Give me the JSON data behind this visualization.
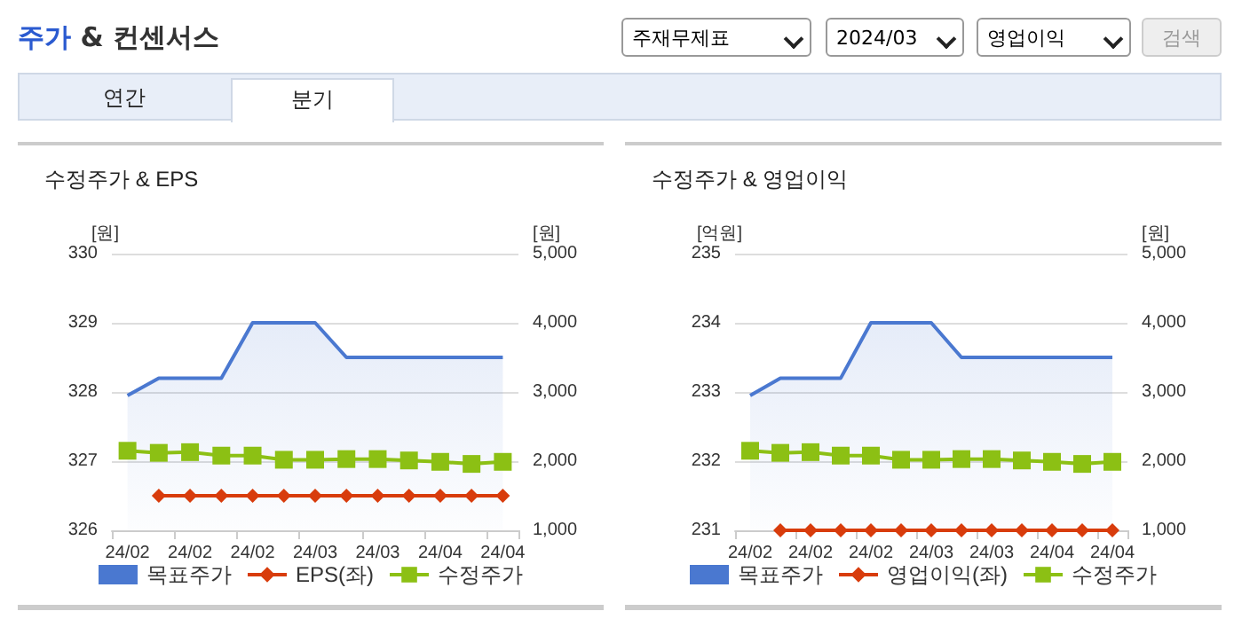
{
  "chart_data": [
    {
      "type": "line",
      "title": "수정주가 & EPS",
      "annotations": [
        "주가 & 컨센서스",
        "주재무제표",
        "2024/03",
        "영업이익",
        "검색",
        "연간",
        "분기"
      ],
      "categories": [
        "24/02",
        null,
        "24/02",
        null,
        "24/02",
        null,
        "24/03",
        null,
        "24/03",
        null,
        "24/04",
        null,
        "24/04"
      ],
      "ylabel": "[원]",
      "y2label": "[원]",
      "ylim": [
        326,
        330
      ],
      "yticks": [
        326,
        327,
        328,
        329,
        330
      ],
      "y2lim": [
        1000,
        5000
      ],
      "y2ticks": [
        {
          "value": 1000,
          "label": "1,000"
        },
        {
          "value": 2000,
          "label": "2,000"
        },
        {
          "value": 3000,
          "label": "3,000"
        },
        {
          "value": 4000,
          "label": "4,000"
        },
        {
          "value": 5000,
          "label": "5,000"
        }
      ],
      "grid": "y",
      "legend": "bottom",
      "series": [
        {
          "name": "목표주가",
          "type": "area",
          "axis": "y2",
          "color": "#4a78d0",
          "marker": "none",
          "values": [
            2950,
            3200,
            3200,
            3200,
            4000,
            4000,
            4000,
            3500,
            3500,
            3500,
            3500,
            3500,
            3500
          ]
        },
        {
          "name": "EPS(좌)",
          "type": "line",
          "color": "#d83c0c",
          "marker": "diamond",
          "values": [
            null,
            326.5,
            326.5,
            326.5,
            326.5,
            326.5,
            326.5,
            326.5,
            326.5,
            326.5,
            326.5,
            326.5,
            326.5
          ]
        },
        {
          "name": "수정주가",
          "type": "line",
          "axis": "y2",
          "color": "#8cc014",
          "marker": "square",
          "values": [
            2150,
            2120,
            2130,
            2080,
            2080,
            2020,
            2020,
            2030,
            2030,
            2010,
            1990,
            1960,
            1990
          ]
        }
      ]
    },
    {
      "type": "line",
      "title": "수정주가 & 영업이익",
      "categories": [
        "24/02",
        null,
        "24/02",
        null,
        "24/02",
        null,
        "24/03",
        null,
        "24/03",
        null,
        "24/04",
        null,
        "24/04"
      ],
      "ylabel": "[억원]",
      "y2label": "[원]",
      "ylim": [
        231,
        235
      ],
      "yticks": [
        231,
        232,
        233,
        234,
        235
      ],
      "y2lim": [
        1000,
        5000
      ],
      "y2ticks": [
        {
          "value": 1000,
          "label": "1,000"
        },
        {
          "value": 2000,
          "label": "2,000"
        },
        {
          "value": 3000,
          "label": "3,000"
        },
        {
          "value": 4000,
          "label": "4,000"
        },
        {
          "value": 5000,
          "label": "5,000"
        }
      ],
      "grid": "y",
      "legend": "bottom",
      "series": [
        {
          "name": "목표주가",
          "type": "area",
          "axis": "y2",
          "color": "#4a78d0",
          "marker": "none",
          "values": [
            2950,
            3200,
            3200,
            3200,
            4000,
            4000,
            4000,
            3500,
            3500,
            3500,
            3500,
            3500,
            3500
          ]
        },
        {
          "name": "영업이익(좌)",
          "type": "line",
          "color": "#d83c0c",
          "marker": "diamond",
          "values": [
            null,
            231,
            231,
            231,
            231,
            231,
            231,
            231,
            231,
            231,
            231,
            231,
            231
          ]
        },
        {
          "name": "수정주가",
          "type": "line",
          "axis": "y2",
          "color": "#8cc014",
          "marker": "square",
          "values": [
            2150,
            2120,
            2130,
            2080,
            2080,
            2020,
            2020,
            2030,
            2030,
            2010,
            1990,
            1960,
            1990
          ]
        }
      ]
    }
  ]
}
